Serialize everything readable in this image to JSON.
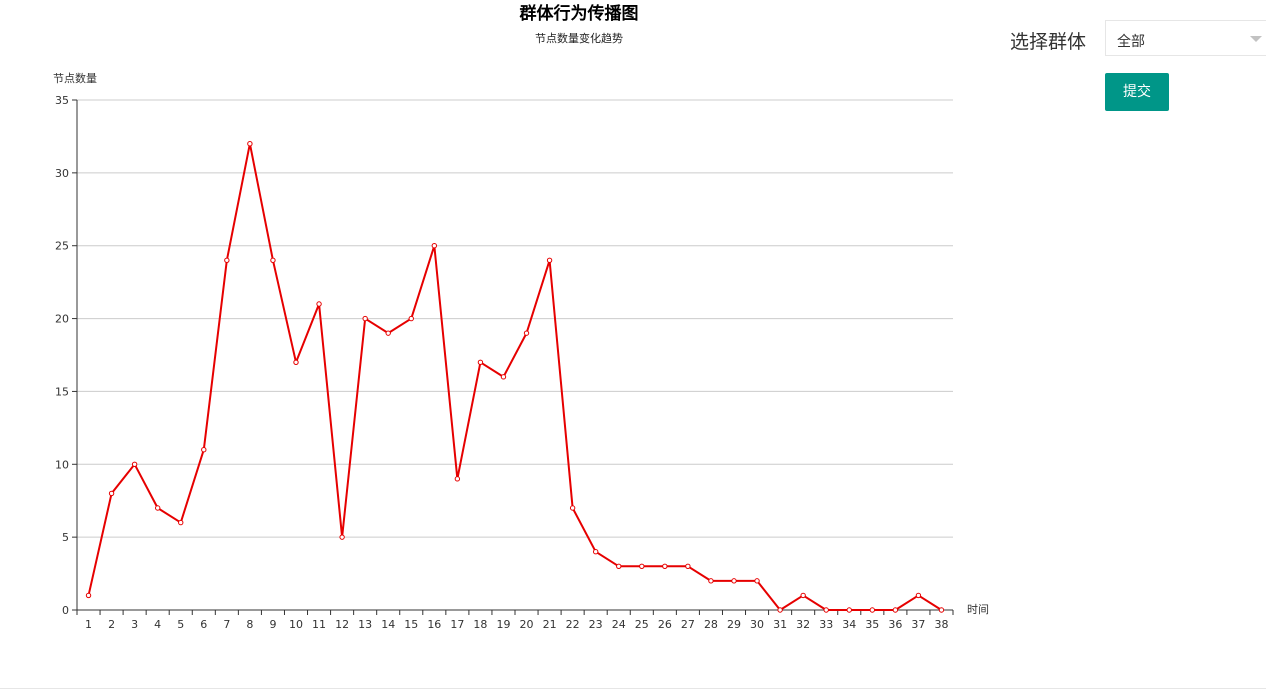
{
  "controls": {
    "group_label": "选择群体",
    "group_select_value": "全部",
    "submit_label": "提交"
  },
  "chart_data": {
    "type": "line",
    "title": "群体行为传播图",
    "subtitle": "节点数量变化趋势",
    "xlabel": "时间",
    "ylabel": "节点数量",
    "categories": [
      "1",
      "2",
      "3",
      "4",
      "5",
      "6",
      "7",
      "8",
      "9",
      "10",
      "11",
      "12",
      "13",
      "14",
      "15",
      "16",
      "17",
      "18",
      "19",
      "20",
      "21",
      "22",
      "23",
      "24",
      "25",
      "26",
      "27",
      "28",
      "29",
      "30",
      "31",
      "32",
      "33",
      "34",
      "35",
      "36",
      "37",
      "38"
    ],
    "series": [
      {
        "values": [
          1,
          8,
          10,
          7,
          6,
          11,
          24,
          32,
          24,
          17,
          21,
          5,
          20,
          19,
          20,
          25,
          9,
          17,
          16,
          19,
          24,
          7,
          4,
          3,
          3,
          3,
          3,
          2,
          2,
          2,
          0,
          1,
          0,
          0,
          0,
          0,
          1,
          0
        ]
      }
    ],
    "ylim": [
      0,
      35
    ],
    "yticks": [
      0,
      5,
      10,
      15,
      20,
      25,
      30,
      35
    ],
    "grid": true,
    "colors": {
      "line": "#e60000",
      "grid": "#cccccc",
      "axis": "#333333",
      "button": "#009688"
    }
  }
}
